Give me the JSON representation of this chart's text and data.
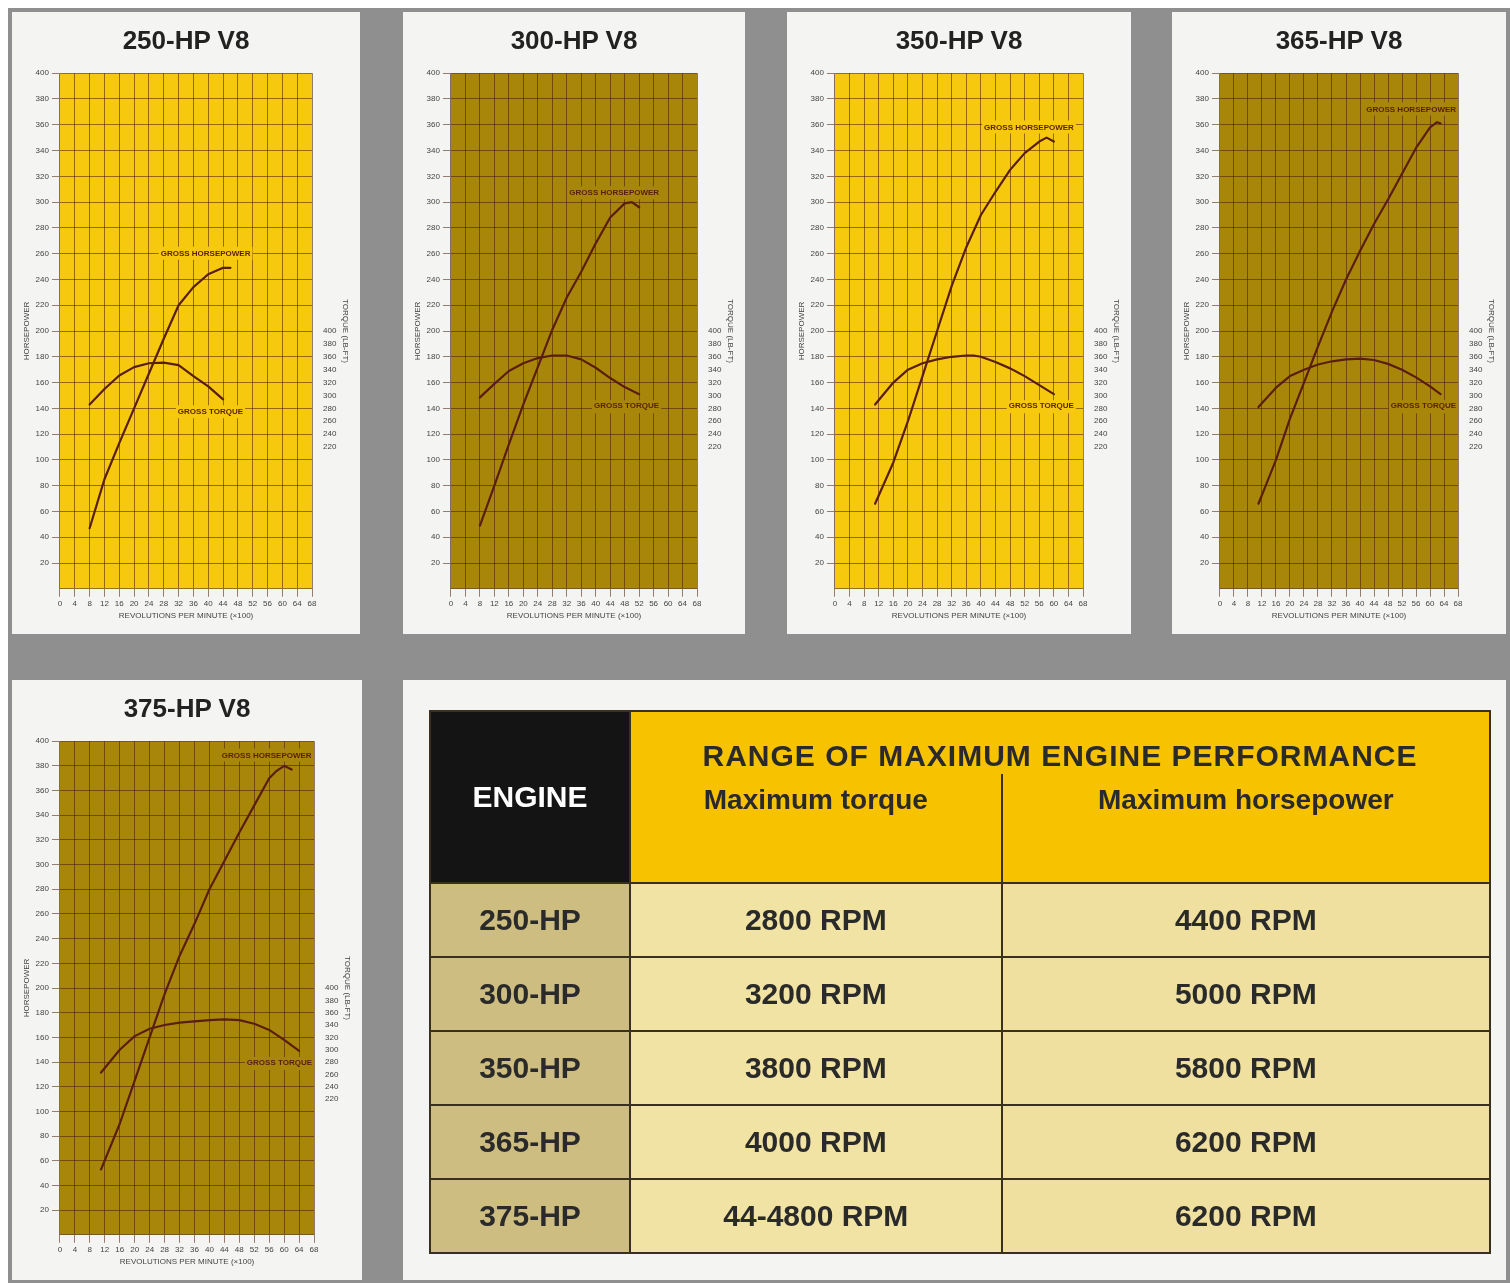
{
  "chart_data": [
    {
      "type": "line",
      "title": "250-HP V8",
      "xlabel": "REVOLUTIONS PER MINUTE (×100)",
      "ylabel": "HORSEPOWER",
      "y2label": "TORQUE (LB-FT)",
      "xlim": [
        0,
        68
      ],
      "xticks": [
        0,
        4,
        8,
        12,
        16,
        20,
        24,
        28,
        32,
        36,
        40,
        44,
        48,
        52,
        56,
        60,
        64,
        68
      ],
      "ylim": [
        0,
        400
      ],
      "yticks": [
        20,
        40,
        60,
        80,
        100,
        120,
        140,
        160,
        180,
        200,
        220,
        240,
        260,
        280,
        300,
        320,
        340,
        360,
        380,
        400
      ],
      "y2lim": [
        0,
        800
      ],
      "y2ticks": [
        220,
        240,
        260,
        280,
        300,
        320,
        340,
        360,
        380,
        400
      ],
      "grid": true,
      "marker": "none",
      "series": [
        {
          "name": "GROSS HORSEPOWER",
          "color": "#5a1e0e",
          "x": [
            8,
            12,
            16,
            20,
            24,
            28,
            32,
            36,
            40,
            44,
            46
          ],
          "values": [
            47,
            85,
            113,
            140,
            167,
            194,
            220,
            234,
            244,
            249,
            249
          ]
        },
        {
          "name": "GROSS TORQUE",
          "color": "#5a1e0e",
          "axis": "y2",
          "x": [
            8,
            12,
            16,
            20,
            24,
            28,
            32,
            36,
            40,
            44
          ],
          "values": [
            286,
            310,
            331,
            344,
            350,
            351,
            347,
            330,
            314,
            294
          ]
        }
      ]
    },
    {
      "type": "line",
      "title": "300-HP V8",
      "xlabel": "REVOLUTIONS PER MINUTE (×100)",
      "ylabel": "HORSEPOWER",
      "y2label": "TORQUE (LB-FT)",
      "xlim": [
        0,
        68
      ],
      "xticks": [
        0,
        4,
        8,
        12,
        16,
        20,
        24,
        28,
        32,
        36,
        40,
        44,
        48,
        52,
        56,
        60,
        64,
        68
      ],
      "ylim": [
        0,
        400
      ],
      "yticks": [
        20,
        40,
        60,
        80,
        100,
        120,
        140,
        160,
        180,
        200,
        220,
        240,
        260,
        280,
        300,
        320,
        340,
        360,
        380,
        400
      ],
      "y2lim": [
        0,
        800
      ],
      "y2ticks": [
        220,
        240,
        260,
        280,
        300,
        320,
        340,
        360,
        380,
        400
      ],
      "grid": true,
      "marker": "none",
      "series": [
        {
          "name": "GROSS HORSEPOWER",
          "color": "#5a1e0e",
          "x": [
            8,
            12,
            16,
            20,
            24,
            28,
            32,
            36,
            40,
            44,
            48,
            50,
            52
          ],
          "values": [
            49,
            80,
            112,
            143,
            172,
            201,
            226,
            246,
            268,
            288,
            299,
            300,
            296
          ]
        },
        {
          "name": "GROSS TORQUE",
          "color": "#5a1e0e",
          "axis": "y2",
          "x": [
            8,
            12,
            16,
            20,
            24,
            28,
            32,
            36,
            40,
            44,
            48,
            52
          ],
          "values": [
            297,
            318,
            338,
            350,
            358,
            362,
            362,
            356,
            343,
            327,
            313,
            302
          ]
        }
      ]
    },
    {
      "type": "line",
      "title": "350-HP V8",
      "xlabel": "REVOLUTIONS PER MINUTE (×100)",
      "ylabel": "HORSEPOWER",
      "y2label": "TORQUE (LB-FT)",
      "xlim": [
        0,
        68
      ],
      "xticks": [
        0,
        4,
        8,
        12,
        16,
        20,
        24,
        28,
        32,
        36,
        40,
        44,
        48,
        52,
        56,
        60,
        64,
        68
      ],
      "ylim": [
        0,
        400
      ],
      "yticks": [
        20,
        40,
        60,
        80,
        100,
        120,
        140,
        160,
        180,
        200,
        220,
        240,
        260,
        280,
        300,
        320,
        340,
        360,
        380,
        400
      ],
      "y2lim": [
        0,
        800
      ],
      "y2ticks": [
        220,
        240,
        260,
        280,
        300,
        320,
        340,
        360,
        380,
        400
      ],
      "grid": true,
      "marker": "none",
      "series": [
        {
          "name": "GROSS HORSEPOWER",
          "color": "#5a1e0e",
          "x": [
            11,
            16,
            20,
            24,
            28,
            32,
            36,
            40,
            44,
            48,
            52,
            56,
            58,
            60
          ],
          "values": [
            66,
            98,
            130,
            165,
            200,
            235,
            265,
            290,
            308,
            325,
            338,
            347,
            350,
            347
          ]
        },
        {
          "name": "GROSS TORQUE",
          "color": "#5a1e0e",
          "axis": "y2",
          "x": [
            11,
            16,
            20,
            24,
            28,
            32,
            36,
            38,
            40,
            44,
            48,
            52,
            56,
            60
          ],
          "values": [
            286,
            320,
            340,
            350,
            356,
            360,
            362,
            362,
            360,
            352,
            342,
            330,
            316,
            302
          ]
        }
      ]
    },
    {
      "type": "line",
      "title": "365-HP V8",
      "xlabel": "REVOLUTIONS PER MINUTE (×100)",
      "ylabel": "HORSEPOWER",
      "y2label": "TORQUE (LB-FT)",
      "xlim": [
        0,
        68
      ],
      "xticks": [
        0,
        4,
        8,
        12,
        16,
        20,
        24,
        28,
        32,
        36,
        40,
        44,
        48,
        52,
        56,
        60,
        64,
        68
      ],
      "ylim": [
        0,
        400
      ],
      "yticks": [
        20,
        40,
        60,
        80,
        100,
        120,
        140,
        160,
        180,
        200,
        220,
        240,
        260,
        280,
        300,
        320,
        340,
        360,
        380,
        400
      ],
      "y2lim": [
        0,
        800
      ],
      "y2ticks": [
        220,
        240,
        260,
        280,
        300,
        320,
        340,
        360,
        380,
        400
      ],
      "grid": true,
      "marker": "none",
      "series": [
        {
          "name": "GROSS HORSEPOWER",
          "color": "#5a1e0e",
          "x": [
            11,
            16,
            20,
            24,
            28,
            32,
            36,
            40,
            44,
            48,
            52,
            56,
            60,
            62,
            63
          ],
          "values": [
            66,
            100,
            132,
            160,
            188,
            215,
            240,
            262,
            283,
            302,
            322,
            342,
            358,
            362,
            361
          ]
        },
        {
          "name": "GROSS TORQUE",
          "color": "#5a1e0e",
          "axis": "y2",
          "x": [
            11,
            16,
            20,
            24,
            28,
            32,
            36,
            40,
            44,
            48,
            52,
            56,
            60,
            63
          ],
          "values": [
            282,
            312,
            330,
            340,
            348,
            353,
            356,
            357,
            355,
            349,
            340,
            328,
            314,
            302
          ]
        }
      ]
    },
    {
      "type": "line",
      "title": "375-HP V8",
      "xlabel": "REVOLUTIONS PER MINUTE (×100)",
      "ylabel": "HORSEPOWER",
      "y2label": "TORQUE (LB-FT)",
      "xlim": [
        0,
        68
      ],
      "xticks": [
        0,
        4,
        8,
        12,
        16,
        20,
        24,
        28,
        32,
        36,
        40,
        44,
        48,
        52,
        56,
        60,
        64,
        68
      ],
      "ylim": [
        0,
        400
      ],
      "yticks": [
        20,
        40,
        60,
        80,
        100,
        120,
        140,
        160,
        180,
        200,
        220,
        240,
        260,
        280,
        300,
        320,
        340,
        360,
        380,
        400
      ],
      "y2lim": [
        0,
        800
      ],
      "y2ticks": [
        220,
        240,
        260,
        280,
        300,
        320,
        340,
        360,
        380,
        400
      ],
      "grid": true,
      "marker": "none",
      "series": [
        {
          "name": "GROSS HORSEPOWER",
          "color": "#5a1e0e",
          "x": [
            11,
            16,
            20,
            24,
            28,
            32,
            36,
            40,
            44,
            48,
            52,
            56,
            58,
            60,
            62
          ],
          "values": [
            53,
            90,
            125,
            160,
            195,
            226,
            252,
            280,
            303,
            326,
            348,
            370,
            376,
            380,
            377
          ]
        },
        {
          "name": "GROSS TORQUE",
          "color": "#5a1e0e",
          "axis": "y2",
          "x": [
            11,
            16,
            20,
            24,
            28,
            32,
            36,
            40,
            44,
            48,
            52,
            56,
            60,
            64
          ],
          "values": [
            263,
            300,
            322,
            334,
            340,
            344,
            346,
            348,
            349,
            348,
            342,
            332,
            316,
            298
          ]
        }
      ]
    },
    {
      "type": "other",
      "title": "RANGE OF MAXIMUM ENGINE PERFORMANCE",
      "ylabel": "ENGINE",
      "categories": [
        "Maximum torque",
        "Maximum horsepower"
      ],
      "y_categories": [
        "250-HP",
        "300-HP",
        "350-HP",
        "365-HP",
        "375-HP"
      ],
      "cell_labels": [
        [
          "2800 RPM",
          "4400 RPM"
        ],
        [
          "3200 RPM",
          "5000 RPM"
        ],
        [
          "3800 RPM",
          "5800 RPM"
        ],
        [
          "4000 RPM",
          "6200 RPM"
        ],
        [
          "44-4800 RPM",
          "6200 RPM"
        ]
      ]
    }
  ]
}
